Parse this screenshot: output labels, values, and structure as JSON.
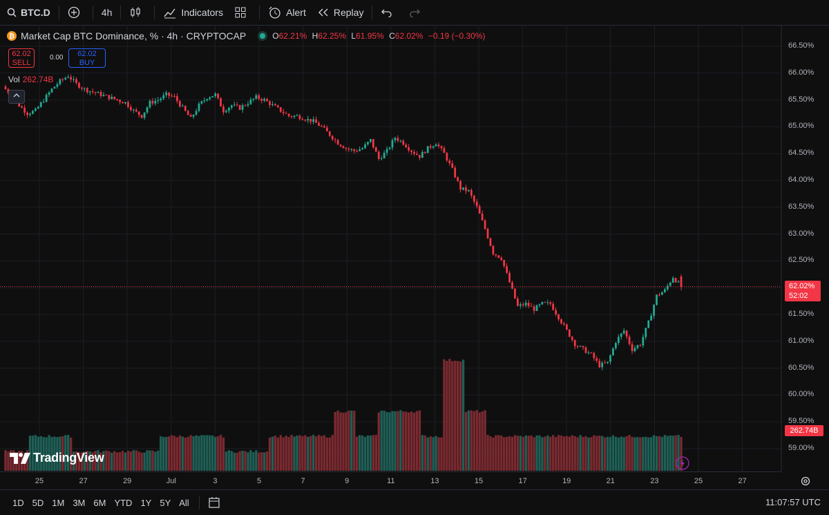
{
  "toolbar": {
    "symbol": "BTC.D",
    "interval": "4h",
    "indicators_label": "Indicators",
    "alert_label": "Alert",
    "replay_label": "Replay"
  },
  "legend": {
    "title": "Market Cap BTC Dominance, % · 4h · CRYPTOCAP",
    "o_label": "O",
    "o_value": "62.21%",
    "h_label": "H",
    "h_value": "62.25%",
    "l_label": "L",
    "l_value": "61.95%",
    "c_label": "C",
    "c_value": "62.02%",
    "change": "−0.19 (−0.30%)"
  },
  "trade": {
    "sell_price": "62.02",
    "sell_label": "SELL",
    "spread": "0.00",
    "buy_price": "62.02",
    "buy_label": "BUY"
  },
  "volume_legend": {
    "label": "Vol",
    "value": "262.74B"
  },
  "price_axis": {
    "labels": [
      "66.50%",
      "66.00%",
      "65.50%",
      "65.00%",
      "64.50%",
      "64.00%",
      "63.50%",
      "63.00%",
      "62.50%",
      "62.00%",
      "61.50%",
      "61.00%",
      "60.50%",
      "60.00%",
      "59.50%",
      "59.00%"
    ],
    "current_price": "62.02%",
    "countdown": "52:02",
    "volume_tag": "262.74B"
  },
  "time_axis": {
    "labels": [
      "25",
      "27",
      "29",
      "Jul",
      "3",
      "5",
      "7",
      "9",
      "11",
      "13",
      "15",
      "17",
      "19",
      "21",
      "23",
      "25",
      "27"
    ]
  },
  "ranges": [
    "1D",
    "5D",
    "1M",
    "3M",
    "6M",
    "YTD",
    "1Y",
    "5Y",
    "All"
  ],
  "clock": "11:07:57 UTC",
  "brand": "TradingView",
  "colors": {
    "up": "#22ab94",
    "down": "#f23645",
    "background": "#0f0f0f"
  },
  "chart_data": {
    "type": "candlestick",
    "unit": "%",
    "ylim": [
      58.6,
      66.7
    ],
    "price_close_path": [
      65.75,
      65.6,
      65.4,
      65.25,
      65.3,
      65.5,
      65.7,
      65.85,
      65.95,
      65.8,
      65.7,
      65.65,
      65.6,
      65.55,
      65.5,
      65.45,
      65.3,
      65.2,
      65.45,
      65.5,
      65.6,
      65.55,
      65.35,
      65.15,
      65.4,
      65.55,
      65.6,
      65.3,
      65.4,
      65.35,
      65.45,
      65.55,
      65.5,
      65.4,
      65.3,
      65.2,
      65.2,
      65.15,
      65.1,
      65.0,
      64.85,
      64.7,
      64.6,
      64.55,
      64.6,
      64.75,
      64.4,
      64.55,
      64.8,
      64.7,
      64.55,
      64.45,
      64.6,
      64.7,
      64.5,
      64.2,
      63.85,
      63.8,
      63.5,
      63.1,
      62.65,
      62.55,
      62.1,
      61.65,
      61.7,
      61.6,
      61.7,
      61.7,
      61.45,
      61.2,
      60.95,
      60.85,
      60.75,
      60.55,
      60.6,
      61.0,
      61.2,
      60.85,
      60.95,
      61.35,
      61.85,
      61.95,
      62.2,
      62.02
    ],
    "volume_levels": [
      "low",
      "mid",
      "high",
      "very-high"
    ]
  }
}
